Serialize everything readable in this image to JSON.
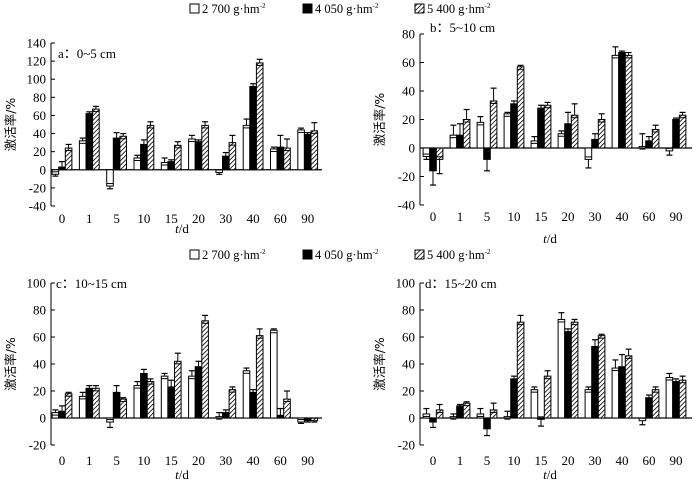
{
  "legend": {
    "items": [
      {
        "label": "2 700 g·hm",
        "sup": "-2",
        "style": "open"
      },
      {
        "label": "4 050 g·hm",
        "sup": "-2",
        "style": "solid"
      },
      {
        "label": "5 400 g·hm",
        "sup": "-2",
        "style": "hatched"
      }
    ]
  },
  "chart_data": [
    {
      "type": "bar",
      "title": "a：0~5 cm",
      "xlabel": "t/d",
      "ylabel": "激活率/%",
      "ylim": [
        -40,
        140
      ],
      "yticks": [
        -40,
        -20,
        0,
        20,
        40,
        60,
        80,
        100,
        120,
        140
      ],
      "categories": [
        "0",
        "1",
        "5",
        "10",
        "15",
        "20",
        "30",
        "40",
        "60",
        "90"
      ],
      "series": [
        {
          "name": "2 700 g·hm-2",
          "values": [
            -5,
            32,
            -18,
            13,
            8,
            34,
            -3,
            49,
            23,
            44
          ],
          "errors": [
            2,
            3,
            3,
            3,
            5,
            4,
            2,
            7,
            2,
            2
          ]
        },
        {
          "name": "4 050 g·hm-2",
          "values": [
            3,
            62,
            35,
            28,
            9,
            31,
            15,
            92,
            25,
            39
          ],
          "errors": [
            6,
            2,
            6,
            5,
            2,
            2,
            4,
            3,
            13,
            2
          ]
        },
        {
          "name": "5 400 g·hm-2",
          "values": [
            24,
            67,
            37,
            49,
            27,
            49,
            30,
            118,
            24,
            43
          ],
          "errors": [
            4,
            3,
            3,
            4,
            4,
            4,
            8,
            4,
            10,
            9
          ]
        }
      ]
    },
    {
      "type": "bar",
      "title": "b：5~10 cm",
      "xlabel": "t/d",
      "ylabel": "激活率/%",
      "ylim": [
        -40,
        80
      ],
      "yticks": [
        -40,
        -20,
        0,
        20,
        40,
        60,
        80
      ],
      "categories": [
        "0",
        "1",
        "5",
        "10",
        "15",
        "20",
        "30",
        "40",
        "60",
        "90"
      ],
      "series": [
        {
          "name": "2 700 g·hm-2",
          "values": [
            -6,
            9,
            18,
            24,
            5,
            10,
            -8,
            65,
            1,
            -2
          ],
          "errors": [
            2,
            7,
            4,
            1,
            3,
            2,
            6,
            6,
            9,
            3
          ]
        },
        {
          "name": "4 050 g·hm-2",
          "values": [
            -16,
            9,
            -8,
            31,
            28,
            17,
            6,
            67,
            5,
            20
          ],
          "errors": [
            10,
            8,
            8,
            2,
            2,
            8,
            4,
            1,
            3,
            1
          ]
        },
        {
          "name": "5 400 g·hm-2",
          "values": [
            -8,
            20,
            33,
            57,
            30,
            23,
            20,
            65,
            13,
            23
          ],
          "errors": [
            10,
            7,
            9,
            1,
            2,
            8,
            4,
            2,
            3,
            2
          ]
        }
      ]
    },
    {
      "type": "bar",
      "title": "c：10~15 cm",
      "xlabel": "t/d",
      "ylabel": "激活率/%",
      "ylim": [
        -20,
        100
      ],
      "yticks": [
        -20,
        0,
        20,
        40,
        60,
        80,
        100
      ],
      "categories": [
        "0",
        "1",
        "5",
        "10",
        "15",
        "20",
        "30",
        "40",
        "60",
        "90"
      ],
      "series": [
        {
          "name": "2 700 g·hm-2",
          "values": [
            4,
            16,
            -3,
            24,
            31,
            31,
            1,
            35,
            65,
            -3
          ],
          "errors": [
            2,
            3,
            4,
            3,
            2,
            4,
            3,
            2,
            1,
            1
          ]
        },
        {
          "name": "4 050 g·hm-2",
          "values": [
            5,
            22,
            19,
            33,
            23,
            38,
            4,
            19,
            2,
            -2
          ],
          "errors": [
            4,
            2,
            5,
            3,
            5,
            4,
            2,
            2,
            5,
            1
          ]
        },
        {
          "name": "5 400 g·hm-2",
          "values": [
            18,
            22,
            14,
            27,
            42,
            72,
            21,
            61,
            14,
            -2
          ],
          "errors": [
            1,
            2,
            1,
            2,
            6,
            4,
            2,
            5,
            6,
            1
          ]
        }
      ]
    },
    {
      "type": "bar",
      "title": "d：15~20 cm",
      "xlabel": "t/d",
      "ylabel": "激活率/%",
      "ylim": [
        -20,
        100
      ],
      "yticks": [
        -20,
        0,
        20,
        40,
        60,
        80,
        100
      ],
      "categories": [
        "0",
        "1",
        "5",
        "10",
        "15",
        "20",
        "30",
        "40",
        "60",
        "90"
      ],
      "series": [
        {
          "name": "2 700 g·hm-2",
          "values": [
            3,
            1,
            3,
            1,
            21,
            73,
            21,
            37,
            -2,
            30
          ],
          "errors": [
            4,
            2,
            4,
            4,
            2,
            5,
            2,
            6,
            3,
            3
          ]
        },
        {
          "name": "4 050 g·hm-2",
          "values": [
            -3,
            9,
            -8,
            29,
            -1,
            64,
            53,
            38,
            15,
            27
          ],
          "errors": [
            4,
            1,
            5,
            2,
            5,
            2,
            5,
            9,
            2,
            2
          ]
        },
        {
          "name": "5 400 g·hm-2",
          "values": [
            6,
            11,
            6,
            71,
            31,
            71,
            61,
            46,
            21,
            28
          ],
          "errors": [
            4,
            1,
            5,
            5,
            4,
            2,
            1,
            5,
            2,
            3
          ]
        }
      ]
    }
  ]
}
